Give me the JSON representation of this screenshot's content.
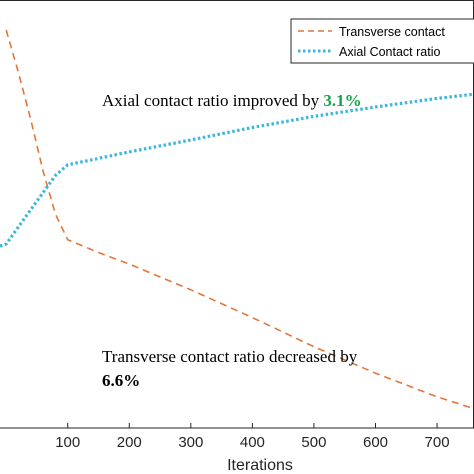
{
  "chart_data": {
    "type": "line",
    "xlabel": "Iterations",
    "ylabel": "",
    "xlim": [
      -10,
      760
    ],
    "ylim": [
      0,
      1
    ],
    "x_ticks": [
      100,
      200,
      300,
      400,
      500,
      600,
      700
    ],
    "grid": false,
    "legend_position": "top-right",
    "series": [
      {
        "name": "Transverse contact",
        "style": "dashed",
        "color": "#E2763A",
        "x": [
          0,
          20,
          40,
          60,
          80,
          100,
          150,
          200,
          300,
          400,
          500,
          600,
          700,
          760
        ],
        "y": [
          0.93,
          0.83,
          0.72,
          0.6,
          0.5,
          0.44,
          0.41,
          0.383,
          0.323,
          0.258,
          0.19,
          0.128,
          0.073,
          0.045
        ]
      },
      {
        "name": "Axial Contact ratio",
        "style": "dotted",
        "color": "#3BB6DE",
        "x": [
          -10,
          0,
          20,
          40,
          60,
          80,
          100,
          150,
          200,
          300,
          400,
          500,
          600,
          700,
          760
        ],
        "y": [
          0.425,
          0.43,
          0.47,
          0.51,
          0.55,
          0.59,
          0.615,
          0.63,
          0.645,
          0.673,
          0.702,
          0.728,
          0.75,
          0.77,
          0.78
        ]
      }
    ],
    "annotations": [
      {
        "text": "Axial contact ratio improved by ",
        "value": "3.1%",
        "value_color": "#16A34A"
      },
      {
        "text": "Transverse contact ratio decreased by",
        "value": "6.6%",
        "value_color": "#C81E1E"
      }
    ]
  }
}
